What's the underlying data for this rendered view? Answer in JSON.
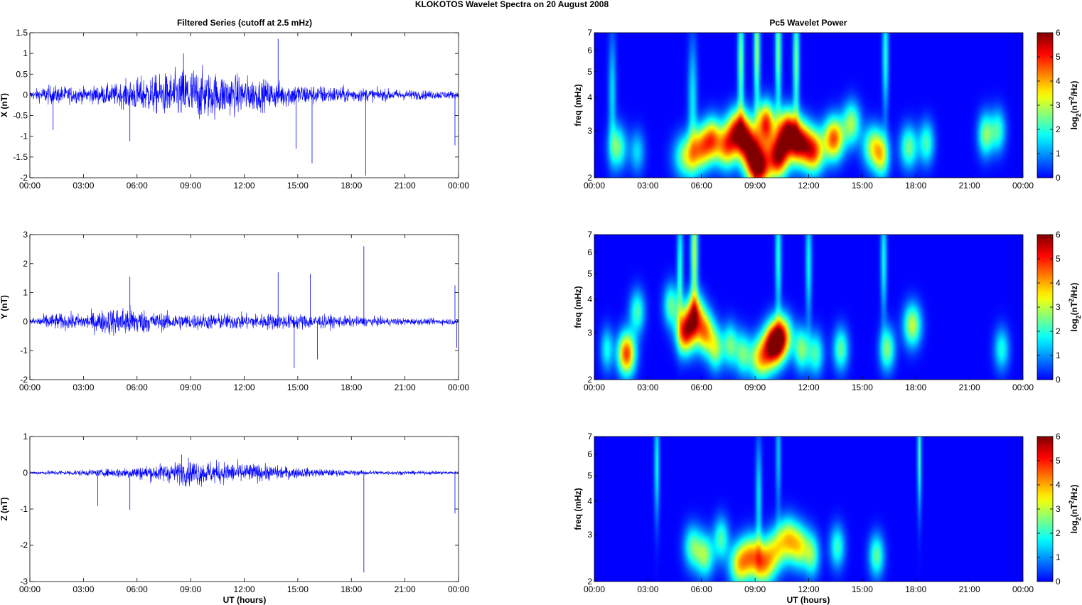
{
  "figure": {
    "suptitle": "KLOKOTOS Wavelet Spectra on 20 August    2008",
    "left_title": "Filtered Series (cutoff at 2.5 mHz)",
    "right_title": "Pc5 Wavelet Power",
    "xlabel": "UT (hours)",
    "colorbar_label_main": "log",
    "colorbar_label_sub": "2",
    "colorbar_label_open": "(nT",
    "colorbar_label_sup": "2",
    "colorbar_label_close": "/Hz)"
  },
  "chart_data": [
    {
      "type": "line",
      "panel": "X",
      "ylabel": "X (nT)",
      "color": "#0000ff",
      "xlim": [
        0,
        24
      ],
      "ylim": [
        -2,
        1.5
      ],
      "xticks": [
        "00:00",
        "03:00",
        "06:00",
        "09:00",
        "12:00",
        "15:00",
        "18:00",
        "21:00",
        "00:00"
      ],
      "yticks": [
        "-2",
        "-1.5",
        "-1",
        "-0.5",
        "0",
        "0.5",
        "1",
        "1.5"
      ],
      "envelope": [
        [
          0,
          0.1
        ],
        [
          1,
          0.25
        ],
        [
          3,
          0.2
        ],
        [
          5,
          0.3
        ],
        [
          6,
          0.45
        ],
        [
          7,
          0.5
        ],
        [
          8,
          0.6
        ],
        [
          9,
          0.75
        ],
        [
          10,
          0.6
        ],
        [
          11,
          0.55
        ],
        [
          12,
          0.5
        ],
        [
          13,
          0.4
        ],
        [
          14,
          0.35
        ],
        [
          15,
          0.3
        ],
        [
          16,
          0.25
        ],
        [
          18,
          0.2
        ],
        [
          20,
          0.15
        ],
        [
          22,
          0.12
        ],
        [
          24,
          0.1
        ]
      ],
      "spikes": [
        [
          1.3,
          -0.85
        ],
        [
          5.6,
          -1.12
        ],
        [
          8.6,
          1.0
        ],
        [
          13.9,
          1.35
        ],
        [
          14.9,
          -1.3
        ],
        [
          15.8,
          -1.65
        ],
        [
          18.8,
          -1.95
        ],
        [
          23.8,
          -1.22
        ]
      ]
    },
    {
      "type": "line",
      "panel": "Y",
      "ylabel": "Y (nT)",
      "color": "#0000ff",
      "xlim": [
        0,
        24
      ],
      "ylim": [
        -2,
        3
      ],
      "xticks": [
        "00:00",
        "03:00",
        "06:00",
        "09:00",
        "12:00",
        "15:00",
        "18:00",
        "21:00",
        "00:00"
      ],
      "yticks": [
        "-2",
        "-1",
        "0",
        "1",
        "2",
        "3"
      ],
      "envelope": [
        [
          0,
          0.12
        ],
        [
          1,
          0.3
        ],
        [
          3,
          0.3
        ],
        [
          4.5,
          0.5
        ],
        [
          5.5,
          0.6
        ],
        [
          7,
          0.35
        ],
        [
          9,
          0.3
        ],
        [
          12,
          0.3
        ],
        [
          15,
          0.3
        ],
        [
          18,
          0.2
        ],
        [
          20,
          0.15
        ],
        [
          22,
          0.12
        ],
        [
          24,
          0.12
        ]
      ],
      "spikes": [
        [
          5.6,
          1.55
        ],
        [
          13.9,
          1.7
        ],
        [
          14.8,
          -1.6
        ],
        [
          15.7,
          1.65
        ],
        [
          16.1,
          -1.3
        ],
        [
          18.7,
          2.6
        ],
        [
          23.8,
          1.25
        ],
        [
          23.9,
          -0.9
        ]
      ]
    },
    {
      "type": "line",
      "panel": "Z",
      "ylabel": "Z (nT)",
      "color": "#0000ff",
      "xlim": [
        0,
        24
      ],
      "ylim": [
        -3,
        1
      ],
      "xticks": [
        "00:00",
        "03:00",
        "06:00",
        "09:00",
        "12:00",
        "15:00",
        "18:00",
        "21:00",
        "00:00"
      ],
      "yticks": [
        "-3",
        "-2",
        "-1",
        "0",
        "1"
      ],
      "envelope": [
        [
          0,
          0.05
        ],
        [
          2,
          0.08
        ],
        [
          4,
          0.1
        ],
        [
          6,
          0.2
        ],
        [
          8,
          0.3
        ],
        [
          9,
          0.4
        ],
        [
          10,
          0.35
        ],
        [
          12,
          0.3
        ],
        [
          14,
          0.2
        ],
        [
          16,
          0.12
        ],
        [
          18,
          0.08
        ],
        [
          20,
          0.06
        ],
        [
          24,
          0.05
        ]
      ],
      "spikes": [
        [
          3.8,
          -0.92
        ],
        [
          5.6,
          -1.02
        ],
        [
          8.5,
          0.5
        ],
        [
          18.7,
          -2.75
        ],
        [
          23.8,
          -1.12
        ]
      ]
    },
    {
      "type": "heatmap",
      "panel": "X power",
      "ylabel": "freq (mHz)",
      "yscale": "log",
      "xlim": [
        0,
        24
      ],
      "ylim": [
        2,
        7
      ],
      "colormap": "jet",
      "clim": [
        0,
        6
      ],
      "xticks": [
        "00:00",
        "03:00",
        "06:00",
        "09:00",
        "12:00",
        "15:00",
        "18:00",
        "21:00",
        "00:00"
      ],
      "yticks": [
        2,
        3,
        4,
        5,
        6,
        7
      ],
      "cbticks": [
        "0",
        "1",
        "2",
        "3",
        "4",
        "5",
        "6"
      ],
      "blobs": [
        [
          1.3,
          2.6,
          2.5,
          0.35
        ],
        [
          2.4,
          2.5,
          1.5,
          0.3
        ],
        [
          5.2,
          2.4,
          3.0,
          0.5
        ],
        [
          6.0,
          2.6,
          3.3,
          0.4
        ],
        [
          6.6,
          2.8,
          3.5,
          0.35
        ],
        [
          7.4,
          2.6,
          3.8,
          0.4
        ],
        [
          8.1,
          3.0,
          5.3,
          0.45
        ],
        [
          8.7,
          2.6,
          4.2,
          0.4
        ],
        [
          9.2,
          2.2,
          6.0,
          0.45
        ],
        [
          9.6,
          3.2,
          4.8,
          0.35
        ],
        [
          10.3,
          2.4,
          5.4,
          0.4
        ],
        [
          10.8,
          3.0,
          5.0,
          0.4
        ],
        [
          11.5,
          2.7,
          5.3,
          0.45
        ],
        [
          12.3,
          2.5,
          4.2,
          0.4
        ],
        [
          13.4,
          2.8,
          4.6,
          0.4
        ],
        [
          14.4,
          3.2,
          2.8,
          0.35
        ],
        [
          15.6,
          2.6,
          3.0,
          0.4
        ],
        [
          16.1,
          2.4,
          2.6,
          0.3
        ],
        [
          17.6,
          2.6,
          2.5,
          0.35
        ],
        [
          18.6,
          2.7,
          2.2,
          0.3
        ],
        [
          21.9,
          2.9,
          2.6,
          0.3
        ],
        [
          22.6,
          3.0,
          2.1,
          0.3
        ]
      ],
      "streaks": [
        [
          1.0,
          4.2,
          0.15,
          1.5
        ],
        [
          8.2,
          5.5,
          0.12,
          2.6
        ],
        [
          9.1,
          6.0,
          0.12,
          2.8
        ],
        [
          10.3,
          6.0,
          0.12,
          2.6
        ],
        [
          11.3,
          5.5,
          0.12,
          2.6
        ],
        [
          16.3,
          5.8,
          0.12,
          2.0
        ],
        [
          5.5,
          4.0,
          0.18,
          1.6
        ]
      ]
    },
    {
      "type": "heatmap",
      "panel": "Y power",
      "ylabel": "freq (mHz)",
      "yscale": "log",
      "xlim": [
        0,
        24
      ],
      "ylim": [
        2,
        7
      ],
      "colormap": "jet",
      "clim": [
        0,
        6
      ],
      "xticks": [
        "00:00",
        "03:00",
        "06:00",
        "09:00",
        "12:00",
        "15:00",
        "18:00",
        "21:00",
        "00:00"
      ],
      "yticks": [
        2,
        3,
        4,
        5,
        6,
        7
      ],
      "cbticks": [
        "0",
        "1",
        "2",
        "3",
        "4",
        "5",
        "6"
      ],
      "blobs": [
        [
          1.8,
          2.5,
          4.8,
          0.35
        ],
        [
          0.7,
          2.6,
          1.8,
          0.25
        ],
        [
          2.4,
          3.6,
          2.2,
          0.3
        ],
        [
          4.3,
          3.8,
          2.4,
          0.3
        ],
        [
          5.1,
          3.0,
          4.9,
          0.35
        ],
        [
          5.6,
          3.5,
          4.2,
          0.35
        ],
        [
          6.2,
          3.0,
          3.8,
          0.35
        ],
        [
          6.8,
          2.6,
          2.6,
          0.3
        ],
        [
          7.6,
          2.7,
          2.4,
          0.3
        ],
        [
          8.3,
          2.5,
          2.2,
          0.3
        ],
        [
          9.3,
          2.4,
          3.5,
          0.45
        ],
        [
          10.0,
          2.7,
          4.9,
          0.4
        ],
        [
          10.5,
          2.9,
          4.4,
          0.4
        ],
        [
          11.6,
          2.6,
          2.6,
          0.3
        ],
        [
          12.4,
          2.5,
          2.2,
          0.3
        ],
        [
          13.8,
          2.6,
          2.4,
          0.3
        ],
        [
          16.4,
          2.6,
          2.6,
          0.3
        ],
        [
          17.8,
          3.2,
          3.1,
          0.35
        ],
        [
          22.8,
          2.6,
          1.9,
          0.3
        ]
      ],
      "streaks": [
        [
          5.6,
          6.0,
          0.14,
          3.0
        ],
        [
          4.8,
          5.3,
          0.12,
          2.0
        ],
        [
          10.3,
          5.8,
          0.12,
          2.0
        ],
        [
          12.0,
          5.5,
          0.12,
          1.8
        ],
        [
          16.2,
          5.6,
          0.12,
          1.8
        ]
      ]
    },
    {
      "type": "heatmap",
      "panel": "Z power",
      "ylabel": "freq (mHz)",
      "yscale": "log",
      "xlim": [
        0,
        24
      ],
      "ylim": [
        2,
        7
      ],
      "colormap": "jet",
      "clim": [
        0,
        6
      ],
      "xticks": [
        "00:00",
        "03:00",
        "06:00",
        "09:00",
        "12:00",
        "15:00",
        "18:00",
        "21:00",
        "00:00"
      ],
      "yticks": [
        2,
        3,
        4,
        5,
        6,
        7
      ],
      "cbticks": [
        "0",
        "1",
        "2",
        "3",
        "4",
        "5",
        "6"
      ],
      "blobs": [
        [
          5.5,
          2.7,
          2.3,
          0.35
        ],
        [
          6.2,
          2.5,
          2.6,
          0.35
        ],
        [
          7.1,
          2.9,
          2.2,
          0.3
        ],
        [
          8.1,
          2.3,
          3.1,
          0.4
        ],
        [
          8.8,
          2.5,
          3.4,
          0.45
        ],
        [
          9.5,
          2.3,
          3.1,
          0.4
        ],
        [
          10.1,
          2.6,
          2.6,
          0.4
        ],
        [
          10.8,
          2.9,
          3.0,
          0.4
        ],
        [
          11.5,
          2.7,
          3.0,
          0.4
        ],
        [
          12.2,
          2.5,
          2.2,
          0.3
        ],
        [
          13.6,
          2.7,
          2.1,
          0.3
        ],
        [
          15.8,
          2.5,
          2.4,
          0.3
        ]
      ],
      "streaks": [
        [
          3.5,
          5.5,
          0.1,
          1.8
        ],
        [
          9.2,
          4.2,
          0.12,
          1.6
        ],
        [
          10.3,
          6.0,
          0.1,
          1.4
        ],
        [
          18.2,
          6.0,
          0.08,
          2.2
        ]
      ]
    }
  ]
}
